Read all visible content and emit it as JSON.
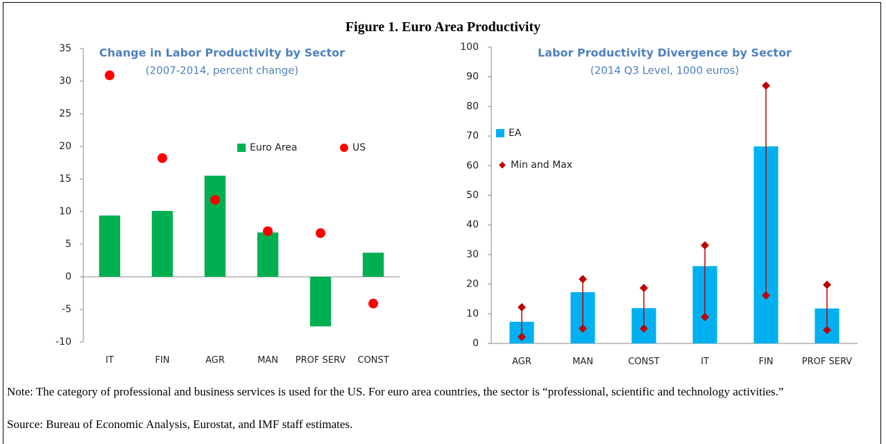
{
  "title": "Figure 1. Euro Area Productivity",
  "note": "Note: The category of professional and business services is used for the US. For euro area countries, the sector is “professional, scientific and technology activities.”",
  "source": "Source: Bureau of Economic Analysis, Eurostat, and IMF staff estimates.",
  "chart_data": [
    {
      "type": "bar",
      "title": "Change in Labor Productivity by Sector",
      "subtitle": "(2007-2014, percent change)",
      "categories": [
        "IT",
        "FIN",
        "AGR",
        "MAN",
        "PROF SERV",
        "CONST"
      ],
      "series": [
        {
          "name": "Euro Area",
          "type": "bar",
          "color": "#00b050",
          "values": [
            9.4,
            10.1,
            15.5,
            6.8,
            -7.6,
            3.7
          ]
        },
        {
          "name": "US",
          "type": "scatter",
          "marker": "circle",
          "color": "#ff0000",
          "values": [
            30.9,
            18.2,
            11.8,
            7.0,
            6.7,
            -4.1
          ]
        }
      ],
      "ylim": [
        -10,
        35
      ],
      "yticks": [
        -10,
        -5,
        0,
        5,
        10,
        15,
        20,
        25,
        30,
        35
      ]
    },
    {
      "type": "bar",
      "title": "Labor Productivity Divergence by Sector",
      "subtitle": "(2014 Q3 Level, 1000 euros)",
      "categories": [
        "AGR",
        "MAN",
        "CONST",
        "IT",
        "FIN",
        "PROF SERV"
      ],
      "series": [
        {
          "name": "EA",
          "type": "bar",
          "color": "#00b0f0",
          "values": [
            7.3,
            17.3,
            11.9,
            26.1,
            66.5,
            11.8
          ]
        },
        {
          "name": "Min and Max",
          "type": "range",
          "marker": "diamond",
          "color": "#c00000",
          "min": [
            2.2,
            5.0,
            5.0,
            8.9,
            16.2,
            4.5
          ],
          "max": [
            12.2,
            21.7,
            18.7,
            33.1,
            87.0,
            19.8
          ]
        }
      ],
      "ylim": [
        0,
        100
      ],
      "yticks": [
        0,
        10,
        20,
        30,
        40,
        50,
        60,
        70,
        80,
        90,
        100
      ]
    }
  ]
}
